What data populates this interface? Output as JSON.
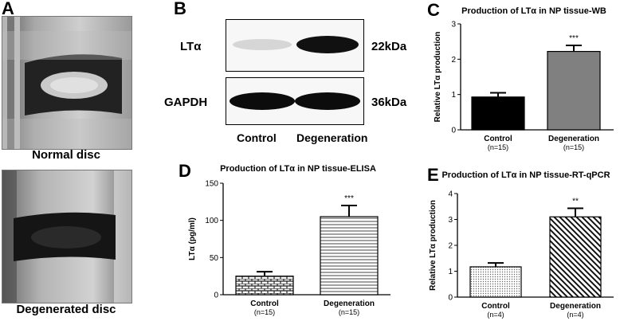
{
  "panels": {
    "a": {
      "letter": "A",
      "top_caption": "Normal disc",
      "bottom_caption": "Degenerated disc"
    },
    "b": {
      "letter": "B",
      "band1_label": "LTα",
      "band1_kda": "22kDa",
      "band2_label": "GAPDH",
      "band2_kda": "36kDa",
      "lane1": "Control",
      "lane2": "Degeneration"
    }
  },
  "chart_data": [
    {
      "id": "C",
      "letter": "C",
      "type": "bar",
      "title": "Production of LTα in NP tissue-WB",
      "ylabel": "Relative LTα production",
      "xlabel": "",
      "ylim": [
        0,
        3
      ],
      "yticks": [
        "0",
        "1",
        "2",
        "3"
      ],
      "categories": [
        "Control",
        "Degeneration"
      ],
      "category_n": [
        "(n=15)",
        "(n=15)"
      ],
      "values": [
        0.93,
        2.22
      ],
      "errors": [
        0.12,
        0.17
      ],
      "significance": [
        "",
        "***"
      ],
      "fills": [
        "#000000",
        "#808080"
      ],
      "pattern": [
        "solid",
        "solid"
      ]
    },
    {
      "id": "D",
      "letter": "D",
      "type": "bar",
      "title": "Production of LTα in NP tissue-ELISA",
      "ylabel": "LTα (pg/ml)",
      "xlabel": "",
      "ylim": [
        0,
        150
      ],
      "yticks": [
        "0",
        "50",
        "100",
        "150"
      ],
      "categories": [
        "Control",
        "Degeneration"
      ],
      "category_n": [
        "(n=15)",
        "(n=15)"
      ],
      "values": [
        25,
        105
      ],
      "errors": [
        6,
        15
      ],
      "significance": [
        "",
        "***"
      ],
      "fills": [
        "#ffffff",
        "#ffffff"
      ],
      "pattern": [
        "brick",
        "hlines"
      ]
    },
    {
      "id": "E",
      "letter": "E",
      "type": "bar",
      "title": "Production of LTα in NP tissue-RT-qPCR",
      "ylabel": "Relative LTα production",
      "xlabel": "",
      "ylim": [
        0,
        4
      ],
      "yticks": [
        "0",
        "1",
        "2",
        "3",
        "4"
      ],
      "categories": [
        "Control",
        "Degeneration"
      ],
      "category_n": [
        "(n=4)",
        "(n=4)"
      ],
      "values": [
        1.17,
        3.1
      ],
      "errors": [
        0.15,
        0.33
      ],
      "significance": [
        "",
        "**"
      ],
      "fills": [
        "#ffffff",
        "#ffffff"
      ],
      "pattern": [
        "dots",
        "diag"
      ]
    }
  ]
}
